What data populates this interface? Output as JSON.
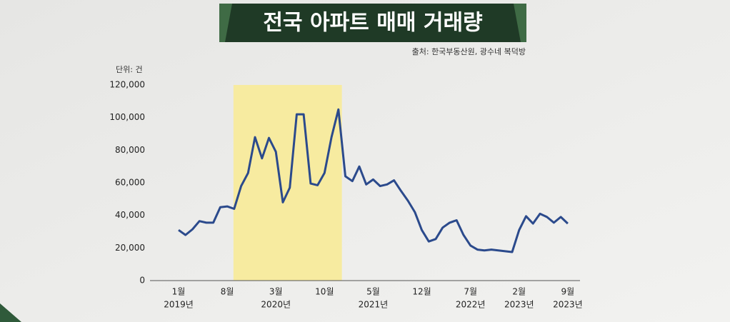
{
  "chart_data": {
    "type": "line",
    "title": "전국 아파트 매매 거래량",
    "source": "출처: 한국부동산원, 광수네 복덕방",
    "unit": "단위: 건",
    "categories": [
      "1월",
      null,
      null,
      null,
      null,
      null,
      null,
      "8월",
      null,
      null,
      null,
      null,
      null,
      null,
      "3월",
      null,
      null,
      null,
      null,
      null,
      null,
      "10월",
      null,
      null,
      null,
      null,
      null,
      null,
      "5월",
      null,
      null,
      null,
      null,
      null,
      null,
      "12월",
      null,
      null,
      null,
      null,
      null,
      null,
      "7월",
      null,
      null,
      null,
      null,
      null,
      null,
      "2월",
      null,
      null,
      null,
      null,
      null,
      null,
      "9월"
    ],
    "category_years": [
      "2019년",
      null,
      null,
      null,
      null,
      null,
      null,
      null,
      null,
      null,
      null,
      null,
      null,
      null,
      "2020년",
      null,
      null,
      null,
      null,
      null,
      null,
      null,
      null,
      null,
      null,
      null,
      null,
      null,
      "2021년",
      null,
      null,
      null,
      null,
      null,
      null,
      null,
      null,
      null,
      null,
      null,
      null,
      null,
      "2022년",
      null,
      null,
      null,
      null,
      null,
      null,
      "2023년",
      null,
      null,
      null,
      null,
      null,
      null,
      "2023년"
    ],
    "series": [
      {
        "name": "매매 거래량",
        "color": "#2b4a8c",
        "values": [
          31000,
          28000,
          31500,
          36500,
          35500,
          35500,
          45000,
          45500,
          44000,
          58000,
          66000,
          88000,
          75000,
          87500,
          79000,
          48000,
          57000,
          102000,
          102000,
          59500,
          58500,
          66000,
          88000,
          105000,
          64000,
          61000,
          70000,
          59000,
          62000,
          58000,
          59000,
          61500,
          55000,
          49000,
          42000,
          31000,
          24000,
          25500,
          32500,
          35500,
          37000,
          28000,
          21500,
          19000,
          18500,
          19000,
          18500,
          18000,
          17500,
          31000,
          39500,
          35000,
          41000,
          39000,
          35500,
          39000,
          35000
        ]
      }
    ],
    "ylim": [
      0,
      120000
    ],
    "yticks": [
      0,
      {
        "value": 20000,
        "label": "20,000"
      },
      {
        "value": 40000,
        "label": "40,000"
      },
      {
        "value": 60000,
        "label": "60,000"
      },
      {
        "value": 80000,
        "label": "80,000"
      },
      {
        "value": 100000,
        "label": "100,000"
      },
      {
        "value": 120000,
        "label": "120,000"
      }
    ]
  }
}
